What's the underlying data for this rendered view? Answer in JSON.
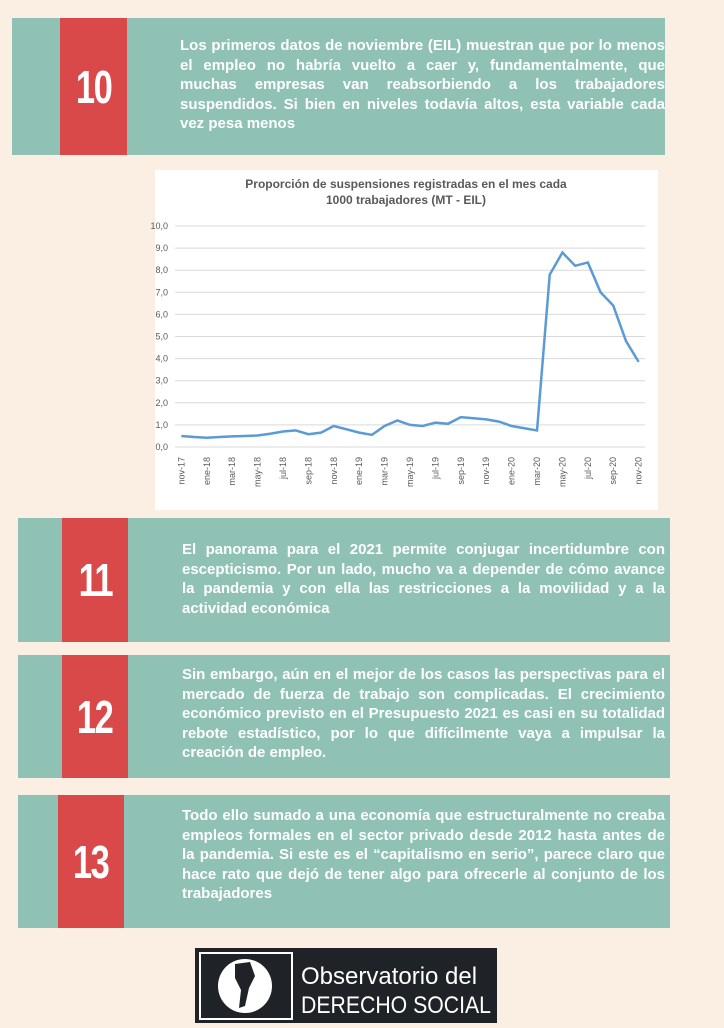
{
  "cards": [
    {
      "number": "10",
      "text": "Los primeros datos de noviembre (EIL) muestran que por lo menos el empleo no habría vuelto a caer y, fundamentalmente, que muchas empresas van reabsorbiendo a los trabajadores suspendidos. Si bien en niveles todavía altos, esta variable cada vez pesa menos"
    },
    {
      "number": "11",
      "text": "El panorama para el 2021 permite conjugar incertidumbre con escepticismo. Por un lado, mucho va a depender de cómo avance la pandemia y con ella las restricciones a la movilidad y a la actividad económica"
    },
    {
      "number": "12",
      "text": "Sin embargo, aún en el mejor de los casos las perspectivas para el mercado de fuerza de trabajo son complicadas. El crecimiento económico previsto en el Presupuesto 2021 es casi en su totalidad rebote estadístico, por lo que difícilmente vaya a impulsar la creación de empleo."
    },
    {
      "number": "13",
      "text": "Todo ello sumado a una economía que estructuralmente no creaba empleos formales en el sector privado desde 2012 hasta antes de la pandemia. Si este es el “capitalismo en serio”, parece claro que hace rato que dejó de tener algo para ofrecerle al conjunto de los trabajadores"
    }
  ],
  "chart_data": {
    "type": "line",
    "title": "Proporción de suspensiones registradas en el mes cada 1000 trabajadores (MT - EIL)",
    "categories": [
      "nov-17",
      null,
      "ene-18",
      null,
      "mar-18",
      null,
      "may-18",
      null,
      "jul-18",
      null,
      "sep-18",
      null,
      "nov-18",
      null,
      "ene-19",
      null,
      "mar-19",
      null,
      "may-19",
      null,
      "jul-19",
      null,
      "sep-19",
      null,
      "nov-19",
      null,
      "ene-20",
      null,
      "mar-20",
      null,
      "may-20",
      null,
      "jul-20",
      null,
      "sep-20",
      null,
      "nov-20"
    ],
    "values": [
      0.5,
      0.45,
      0.42,
      0.45,
      0.48,
      0.5,
      0.52,
      0.6,
      0.7,
      0.75,
      0.58,
      0.65,
      0.95,
      0.8,
      0.65,
      0.55,
      0.95,
      1.2,
      1.0,
      0.95,
      1.1,
      1.05,
      1.35,
      1.3,
      1.25,
      1.15,
      0.95,
      0.85,
      0.75,
      7.8,
      8.8,
      8.2,
      8.35,
      7.0,
      6.4,
      4.8,
      3.85
    ],
    "color": "#5b9bd5",
    "grid": true,
    "ylim": [
      0,
      10
    ],
    "yticks": [
      {
        "value": 0,
        "label": "0,0"
      },
      {
        "value": 1,
        "label": "1,0"
      },
      {
        "value": 2,
        "label": "2,0"
      },
      {
        "value": 3,
        "label": "3,0"
      },
      {
        "value": 4,
        "label": "4,0"
      },
      {
        "value": 5,
        "label": "5,0"
      },
      {
        "value": 6,
        "label": "6,0"
      },
      {
        "value": 7,
        "label": "7,0"
      },
      {
        "value": 8,
        "label": "8,0"
      },
      {
        "value": 9,
        "label": "9,0"
      },
      {
        "value": 10,
        "label": "10,0"
      }
    ]
  },
  "footer": {
    "line1": "Observatorio del",
    "line2": "DERECHO SOCIAL"
  }
}
